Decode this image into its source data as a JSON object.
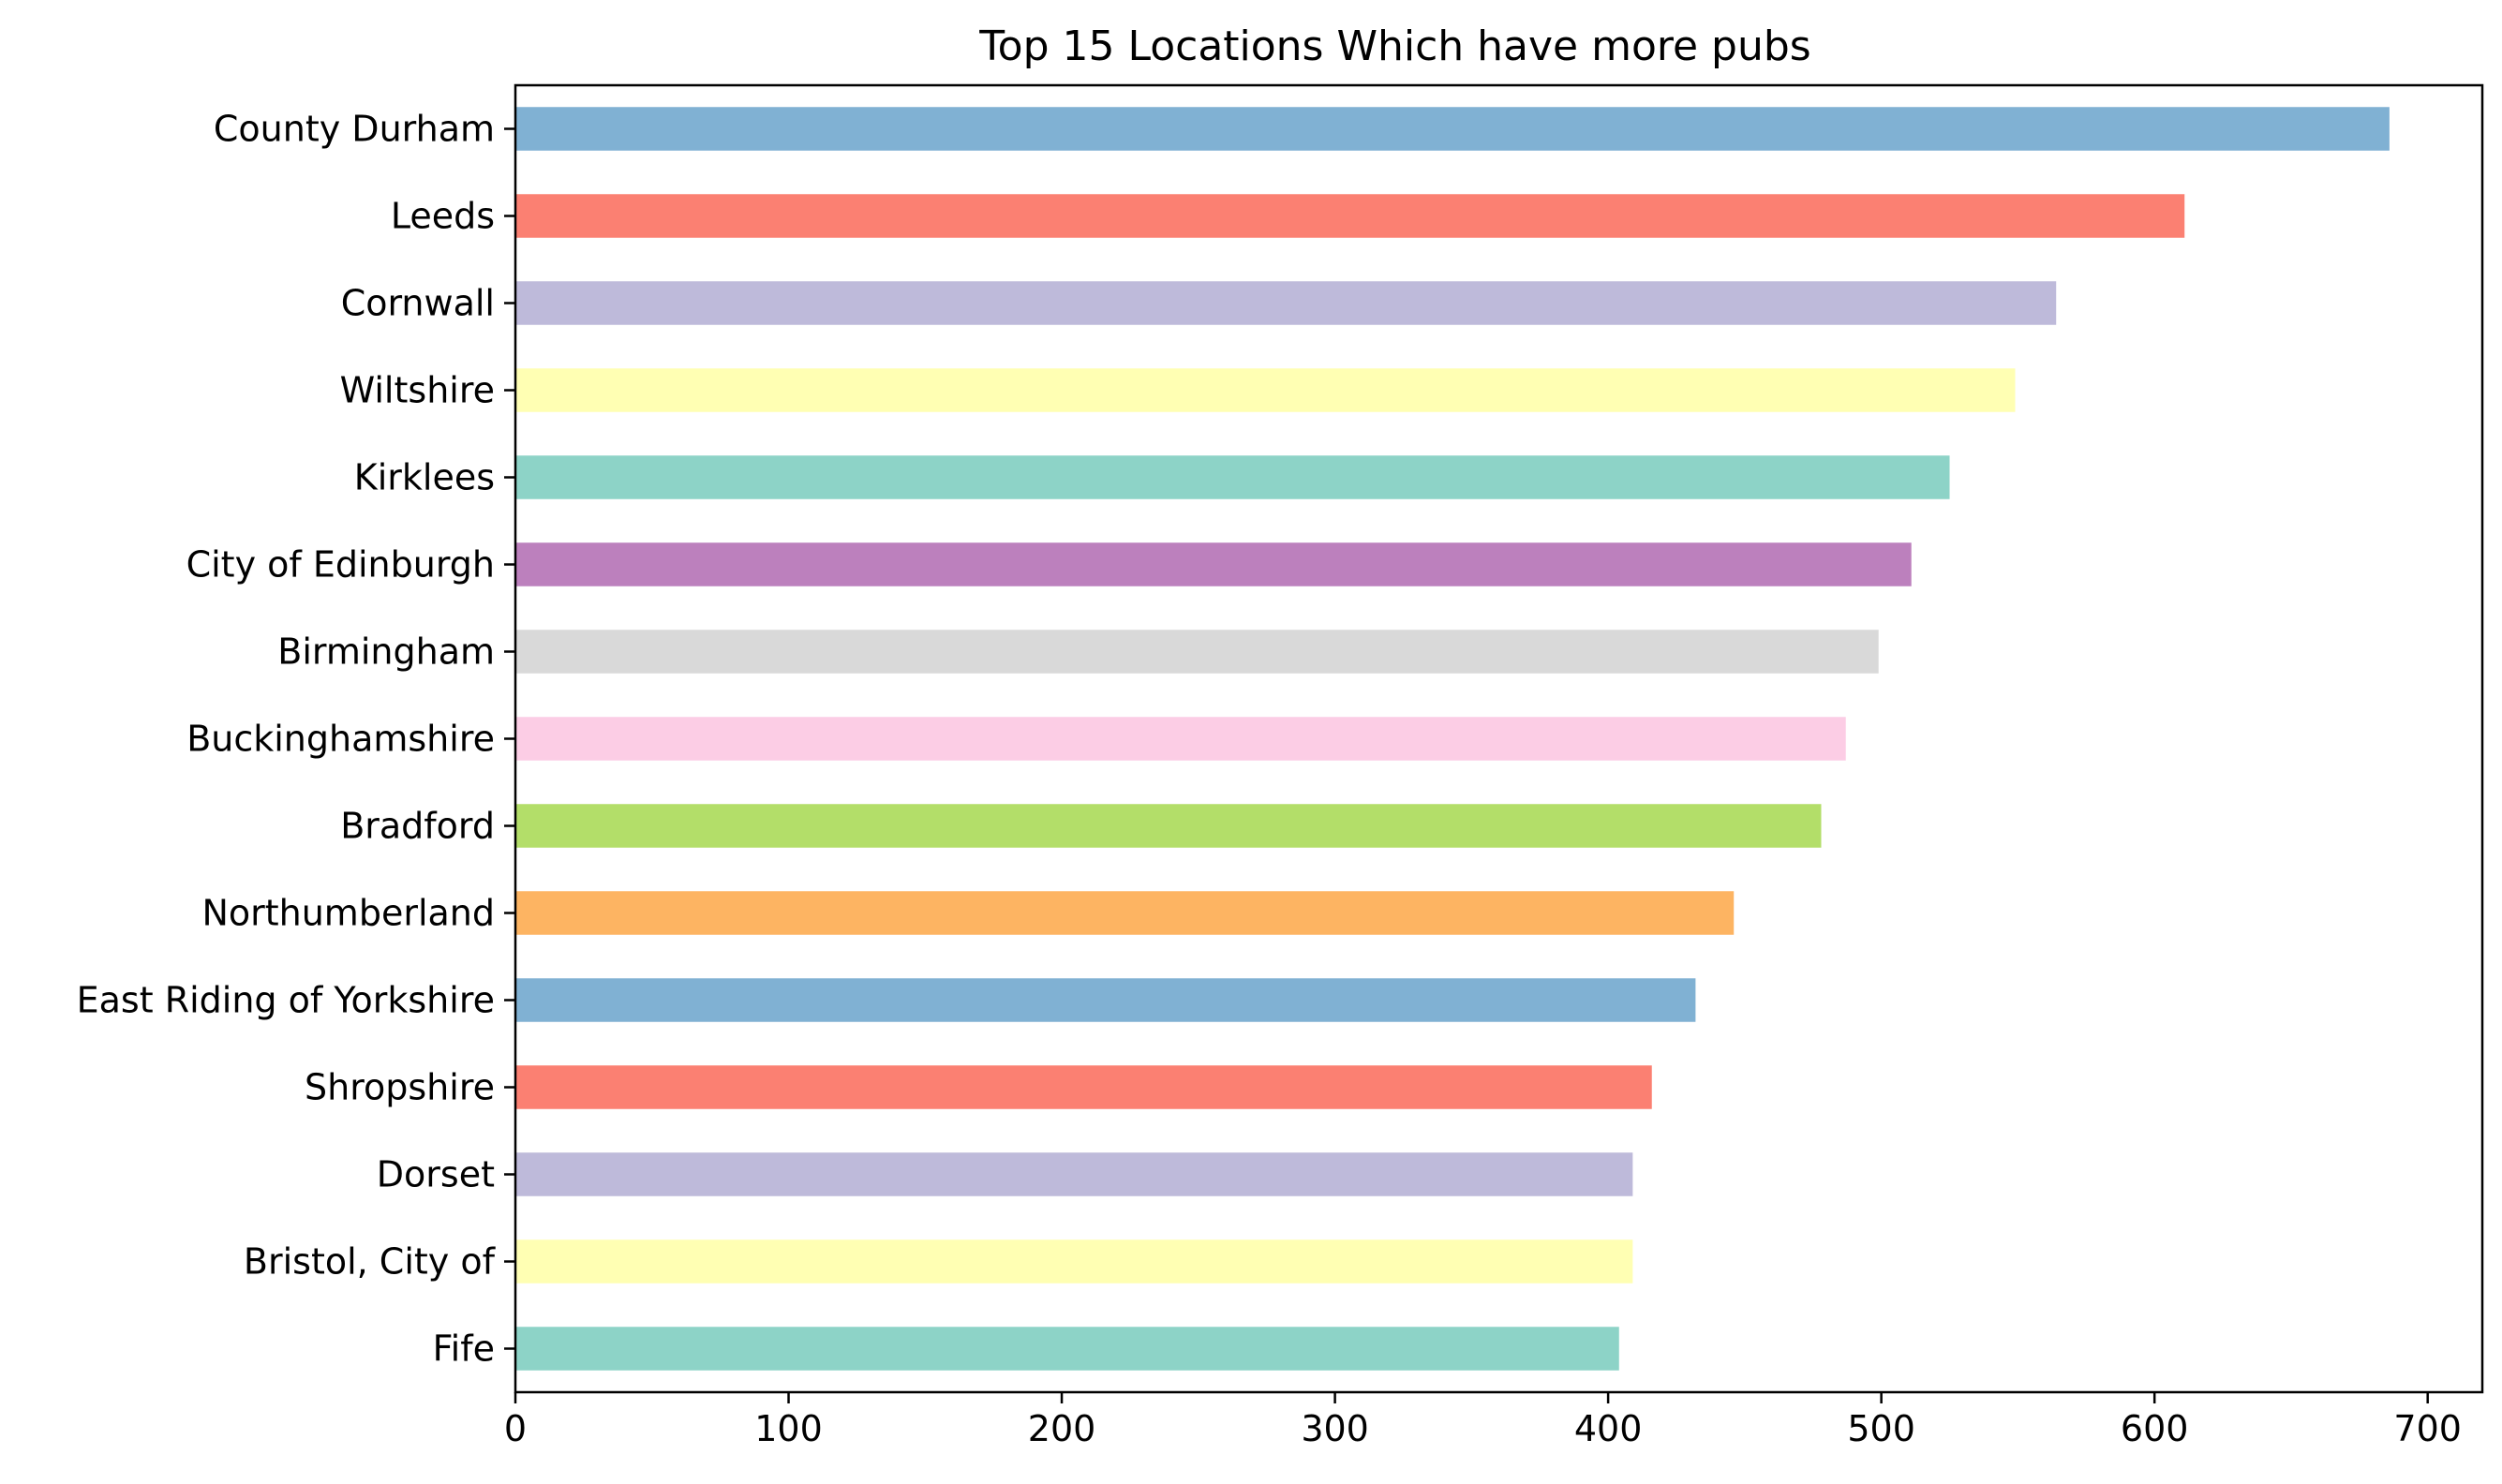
{
  "chart_data": {
    "type": "bar",
    "orientation": "horizontal",
    "title": "Top 15 Locations Which have more pubs",
    "xlabel": "",
    "ylabel": "",
    "xlim": [
      0,
      720
    ],
    "xticks": [
      0,
      100,
      200,
      300,
      400,
      500,
      600,
      700
    ],
    "grid": false,
    "legend": "none",
    "categories": [
      "County Durham",
      "Leeds",
      "Cornwall",
      "Wiltshire",
      "Kirklees",
      "City of Edinburgh",
      "Birmingham",
      "Buckinghamshire",
      "Bradford",
      "Northumberland",
      "East Riding of Yorkshire",
      "Shropshire",
      "Dorset",
      "Bristol, City of",
      "Fife"
    ],
    "values": [
      686,
      611,
      564,
      549,
      525,
      511,
      499,
      487,
      478,
      446,
      432,
      416,
      409,
      409,
      404
    ],
    "colors": [
      "#80b1d3",
      "#fb8072",
      "#bebada",
      "#ffffb3",
      "#8dd3c7",
      "#bc80bd",
      "#d9d9d9",
      "#fccde5",
      "#b3de69",
      "#fdb462",
      "#80b1d3",
      "#fb8072",
      "#bebada",
      "#ffffb3",
      "#8dd3c7"
    ]
  }
}
